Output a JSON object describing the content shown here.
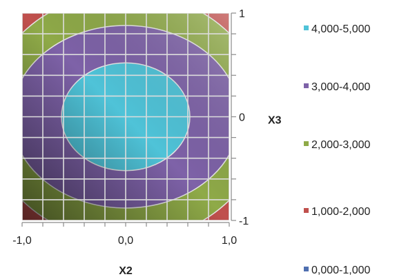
{
  "chart_data": {
    "type": "surface-contour",
    "xlabel": "X2",
    "ylabel": "X3",
    "xlim": [
      -1.0,
      1.0
    ],
    "ylim": [
      -1,
      1
    ],
    "x_tick_labels": [
      "-1,0",
      "0,0",
      "1,0"
    ],
    "y_tick_labels": [
      "1",
      "0",
      "-1"
    ],
    "grid": true,
    "legend_position": "right",
    "bands": [
      {
        "label": "4,000-5,000",
        "color": "#4fc3d8"
      },
      {
        "label": "3,000-4,000",
        "color": "#7e62a8"
      },
      {
        "label": "2,000-3,000",
        "color": "#8faa48"
      },
      {
        "label": "1,000-2,000",
        "color": "#c0504d"
      },
      {
        "label": "0,000-1,000",
        "color": "#4f6fb0"
      }
    ],
    "contours": [
      {
        "band": "4,000-5,000",
        "center": [
          0,
          0
        ],
        "rx": 0.62,
        "ry": 0.52
      },
      {
        "band": "3,000-4,000",
        "center": [
          0,
          0
        ],
        "rx": 1.1,
        "ry": 0.88
      },
      {
        "band": "2,000-3,000",
        "center": [
          0,
          0
        ],
        "rx": 1.35,
        "ry": 1.2
      }
    ]
  }
}
